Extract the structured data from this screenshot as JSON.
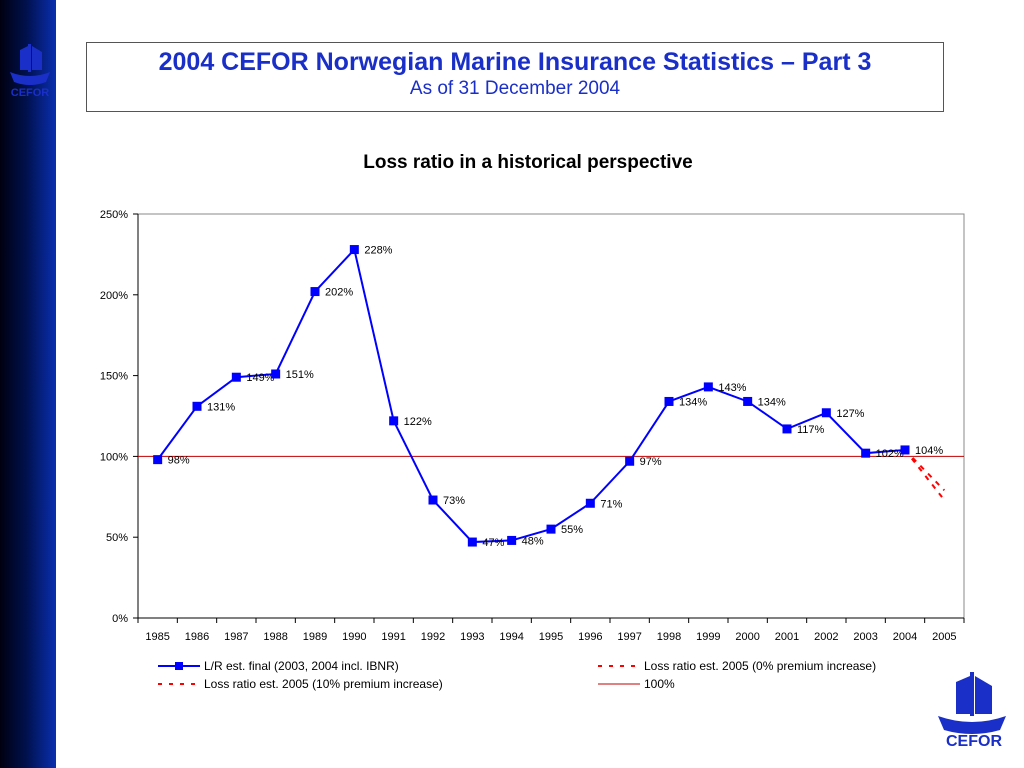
{
  "header": {
    "title": "2004 CEFOR Norwegian Marine Insurance Statistics – Part 3",
    "subtitle": "As of 31 December 2004"
  },
  "logo": {
    "text": "CEFOR"
  },
  "colors": {
    "series": "#0000ff",
    "dashed": "#ff0000",
    "reference": "#c00000",
    "title": "#1a2fc8"
  },
  "chart_data": {
    "type": "line",
    "title": "Loss ratio in a historical perspective",
    "xlabel": "",
    "ylabel": "",
    "x": [
      "1985",
      "1986",
      "1987",
      "1988",
      "1989",
      "1990",
      "1991",
      "1992",
      "1993",
      "1994",
      "1995",
      "1996",
      "1997",
      "1998",
      "1999",
      "2000",
      "2001",
      "2002",
      "2003",
      "2004",
      "2005"
    ],
    "ylim": [
      0,
      250
    ],
    "yticks": [
      0,
      50,
      100,
      150,
      200,
      250
    ],
    "ytick_labels": [
      "0%",
      "50%",
      "100%",
      "150%",
      "200%",
      "250%"
    ],
    "grid": false,
    "legend_position": "bottom",
    "series": [
      {
        "name": "L/R est. final (2003, 2004 incl. IBNR)",
        "style": "solid-marker",
        "x": [
          "1985",
          "1986",
          "1987",
          "1988",
          "1989",
          "1990",
          "1991",
          "1992",
          "1993",
          "1994",
          "1995",
          "1996",
          "1997",
          "1998",
          "1999",
          "2000",
          "2001",
          "2002",
          "2003",
          "2004"
        ],
        "values": [
          98,
          131,
          149,
          151,
          202,
          228,
          122,
          73,
          47,
          48,
          55,
          71,
          97,
          134,
          143,
          134,
          117,
          127,
          102,
          104
        ],
        "labels": [
          "98%",
          "131%",
          "149%",
          "151%",
          "202%",
          "228%",
          "122%",
          "73%",
          "47%",
          "48%",
          "55%",
          "71%",
          "97%",
          "134%",
          "143%",
          "134%",
          "117%",
          "127%",
          "102%",
          "104%"
        ]
      },
      {
        "name": "Loss ratio est. 2005 (0% premium increase)",
        "style": "dashed",
        "x": [
          "2004",
          "2005"
        ],
        "values": [
          104,
          73
        ]
      },
      {
        "name": "Loss ratio est. 2005 (10% premium increase)",
        "style": "dashed",
        "x": [
          "2004",
          "2005"
        ],
        "values": [
          104,
          79
        ]
      },
      {
        "name": "100%",
        "style": "reference",
        "x": [
          "1985",
          "2005"
        ],
        "values": [
          100,
          100
        ]
      }
    ]
  }
}
